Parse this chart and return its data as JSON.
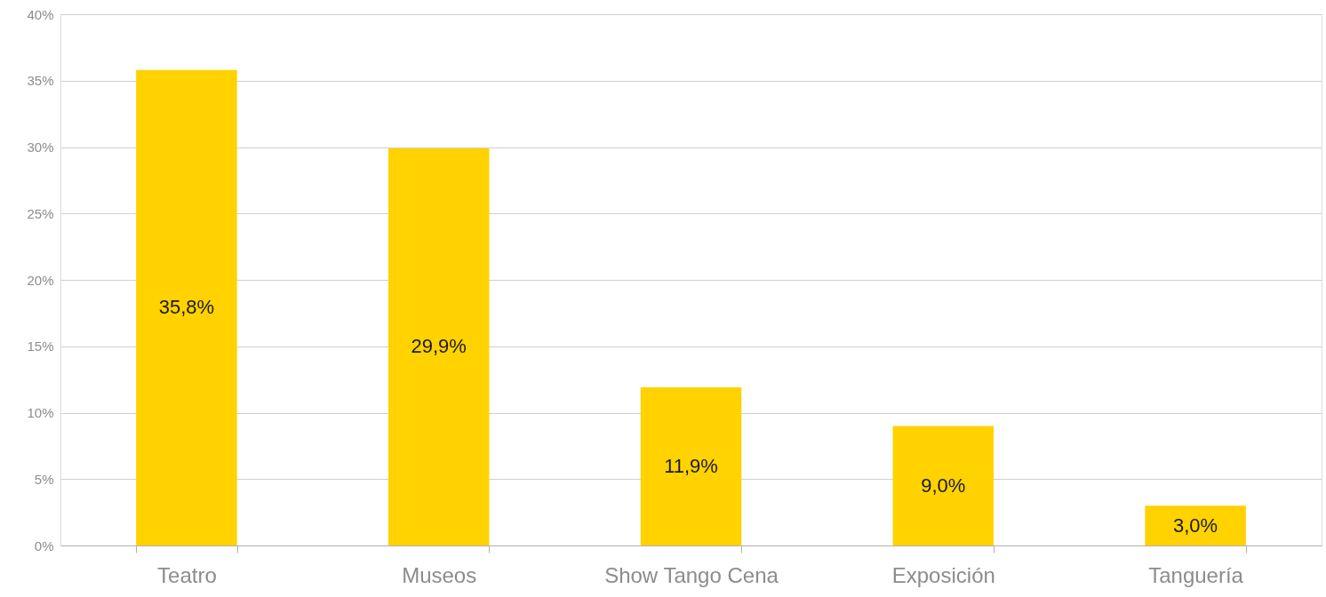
{
  "chart_data": {
    "type": "bar",
    "categories": [
      "Teatro",
      "Museos",
      "Show Tango Cena",
      "Exposición",
      "Tanguería"
    ],
    "values": [
      35.8,
      29.9,
      11.9,
      9.0,
      3.0
    ],
    "value_labels": [
      "35,8%",
      "29,9%",
      "11,9%",
      "9,0%",
      "3,0%"
    ],
    "color": "#ffd200",
    "ylim": [
      0,
      40
    ],
    "yticks": [
      {
        "value": 0,
        "label": "0%"
      },
      {
        "value": 5,
        "label": "5%"
      },
      {
        "value": 10,
        "label": "10%"
      },
      {
        "value": 15,
        "label": "15%"
      },
      {
        "value": 20,
        "label": "20%"
      },
      {
        "value": 25,
        "label": "25%"
      },
      {
        "value": 30,
        "label": "30%"
      },
      {
        "value": 35,
        "label": "35%"
      },
      {
        "value": 40,
        "label": "40%"
      }
    ],
    "grid": "y"
  }
}
